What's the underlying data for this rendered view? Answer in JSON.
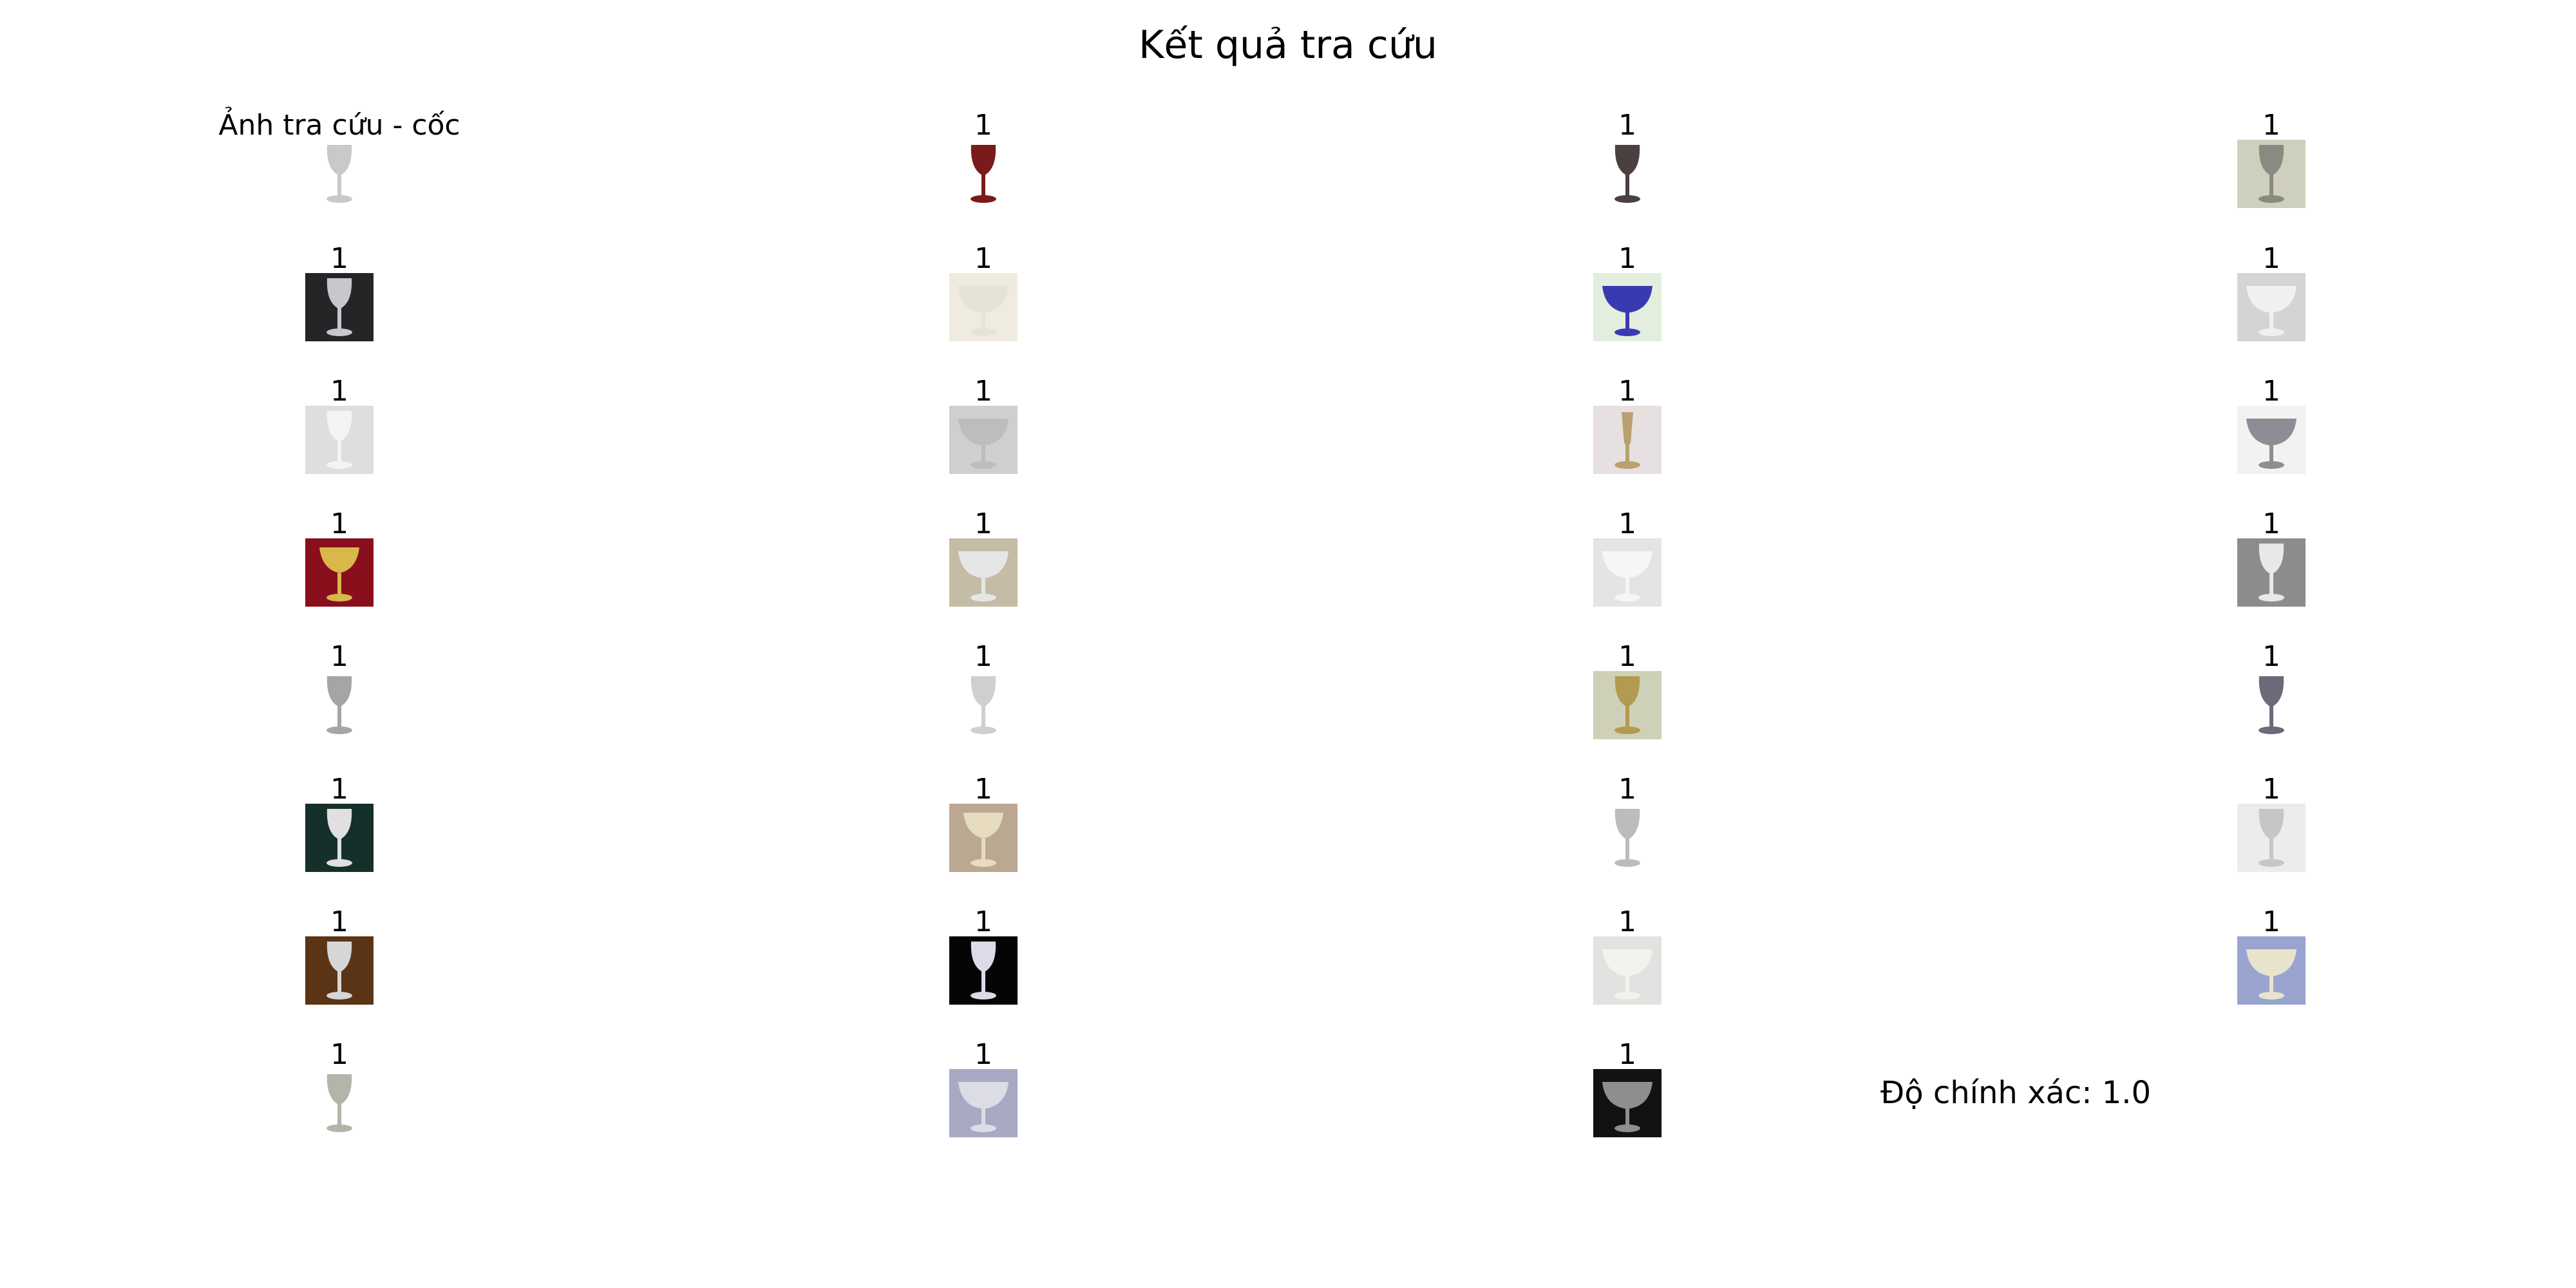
{
  "title": "Kết quả tra cứu",
  "query": {
    "label": "Ảnh tra cứu - cốc",
    "bg": "#ffffff",
    "cup": "#c9c9c9",
    "shape": "goblet",
    "icon": "goblet-icon"
  },
  "results": [
    {
      "label": "1",
      "bg": "#ffffff",
      "cup": "#7a1a1a",
      "shape": "goblet",
      "icon": "goblet-icon"
    },
    {
      "label": "1",
      "bg": "#ffffff",
      "cup": "#4a4040",
      "shape": "goblet",
      "icon": "goblet-icon"
    },
    {
      "label": "1",
      "bg": "#cfcfbd",
      "cup": "#8a8a80",
      "shape": "goblet",
      "icon": "goblet-icon"
    },
    {
      "label": "1",
      "bg": "#252528",
      "cup": "#c8c8cc",
      "shape": "goblet",
      "icon": "goblet-icon"
    },
    {
      "label": "1",
      "bg": "#efebde",
      "cup": "#e6e2d6",
      "shape": "bowl",
      "icon": "goblet-icon"
    },
    {
      "label": "1",
      "bg": "#e3eede",
      "cup": "#3a3ab0",
      "shape": "bowl",
      "icon": "goblet-icon"
    },
    {
      "label": "1",
      "bg": "#d4d4d4",
      "cup": "#f0f0f0",
      "shape": "bowl",
      "icon": "goblet-icon"
    },
    {
      "label": "1",
      "bg": "#dedede",
      "cup": "#f4f4f4",
      "shape": "goblet",
      "icon": "goblet-icon"
    },
    {
      "label": "1",
      "bg": "#cfcfcf",
      "cup": "#bdbdbd",
      "shape": "bowl",
      "icon": "goblet-icon"
    },
    {
      "label": "1",
      "bg": "#e6e0e0",
      "cup": "#b8a070",
      "shape": "flute",
      "icon": "goblet-icon"
    },
    {
      "label": "1",
      "bg": "#f2f2f2",
      "cup": "#8d8d95",
      "shape": "bowl",
      "icon": "goblet-icon"
    },
    {
      "label": "1",
      "bg": "#8a0f1c",
      "cup": "#d8b84a",
      "shape": "chalice",
      "icon": "goblet-icon"
    },
    {
      "label": "1",
      "bg": "#c4bca4",
      "cup": "#e6e6e6",
      "shape": "bowl",
      "icon": "goblet-icon"
    },
    {
      "label": "1",
      "bg": "#e4e4e4",
      "cup": "#f6f6f6",
      "shape": "bowl",
      "icon": "goblet-icon"
    },
    {
      "label": "1",
      "bg": "#8c8c8c",
      "cup": "#e8e8e8",
      "shape": "goblet",
      "icon": "goblet-icon"
    },
    {
      "label": "1",
      "bg": "#ffffff",
      "cup": "#a5a5a5",
      "shape": "goblet",
      "icon": "goblet-icon"
    },
    {
      "label": "1",
      "bg": "#ffffff",
      "cup": "#cfcfcf",
      "shape": "goblet",
      "icon": "goblet-icon"
    },
    {
      "label": "1",
      "bg": "#cfd0b8",
      "cup": "#b29a50",
      "shape": "goblet",
      "icon": "goblet-icon"
    },
    {
      "label": "1",
      "bg": "#ffffff",
      "cup": "#6a6a7a",
      "shape": "goblet",
      "icon": "goblet-icon"
    },
    {
      "label": "1",
      "bg": "#15302a",
      "cup": "#e0e0e0",
      "shape": "goblet",
      "icon": "goblet-icon"
    },
    {
      "label": "1",
      "bg": "#bba890",
      "cup": "#e8dcc0",
      "shape": "chalice",
      "icon": "goblet-icon"
    },
    {
      "label": "1",
      "bg": "#ffffff",
      "cup": "#bcbcbc",
      "shape": "goblet",
      "icon": "goblet-icon"
    },
    {
      "label": "1",
      "bg": "#ececec",
      "cup": "#c6c6c6",
      "shape": "goblet",
      "icon": "goblet-icon"
    },
    {
      "label": "1",
      "bg": "#5a3414",
      "cup": "#d6d6d6",
      "shape": "goblet",
      "icon": "goblet-icon"
    },
    {
      "label": "1",
      "bg": "#050505",
      "cup": "#dcdce8",
      "shape": "goblet",
      "icon": "goblet-icon"
    },
    {
      "label": "1",
      "bg": "#e2e2e0",
      "cup": "#f2f2ee",
      "shape": "bowl",
      "icon": "goblet-icon"
    },
    {
      "label": "1",
      "bg": "#9aa4d0",
      "cup": "#e8e4cc",
      "shape": "bowl",
      "icon": "goblet-icon"
    },
    {
      "label": "1",
      "bg": "#ffffff",
      "cup": "#b4b4a8",
      "shape": "goblet",
      "icon": "goblet-icon"
    },
    {
      "label": "1",
      "bg": "#a9a9c4",
      "cup": "#dcdce4",
      "shape": "bowl",
      "icon": "goblet-icon"
    },
    {
      "label": "1",
      "bg": "#121212",
      "cup": "#8e8e8e",
      "shape": "bowl",
      "icon": "goblet-icon"
    }
  ],
  "accuracy": "Độ chính xác: 1.0"
}
